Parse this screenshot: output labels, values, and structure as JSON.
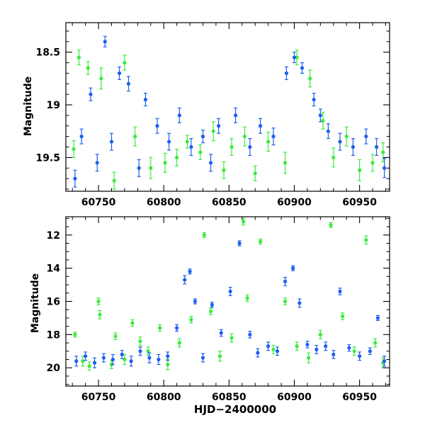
{
  "colors": {
    "series_blue": "#1f5ff0",
    "series_green": "#3dea3d",
    "frame": "#000000"
  },
  "chart_data": [
    {
      "type": "scatter",
      "panel": "top",
      "title": "",
      "xlabel": "",
      "ylabel": "Magnitude",
      "xlim": [
        60725,
        60973
      ],
      "ylim": [
        19.82,
        18.22
      ],
      "y_inverted": true,
      "xticks": [
        60750,
        60800,
        60850,
        60900,
        60950
      ],
      "xtick_labels": [
        "60750",
        "60800",
        "60850",
        "60900",
        "60950"
      ],
      "yticks": [
        18.5,
        19,
        19.5
      ],
      "ytick_labels": [
        "18.5",
        "19",
        "19.5"
      ],
      "error_bars": true,
      "series": [
        {
          "color_key": "series_green",
          "points": [
            [
              60731,
              19.42,
              0.08
            ],
            [
              60735,
              18.55,
              0.07
            ],
            [
              60742,
              18.65,
              0.06
            ],
            [
              60752,
              18.75,
              0.1
            ],
            [
              60762,
              19.72,
              0.08
            ],
            [
              60770,
              18.6,
              0.07
            ],
            [
              60778,
              19.3,
              0.09
            ],
            [
              60790,
              19.6,
              0.1
            ],
            [
              60801,
              19.55,
              0.09
            ],
            [
              60810,
              19.5,
              0.08
            ],
            [
              60818,
              19.35,
              0.06
            ],
            [
              60828,
              19.45,
              0.07
            ],
            [
              60838,
              19.25,
              0.09
            ],
            [
              60846,
              19.62,
              0.08
            ],
            [
              60852,
              19.4,
              0.08
            ],
            [
              60862,
              19.3,
              0.09
            ],
            [
              60870,
              19.65,
              0.07
            ],
            [
              60880,
              19.35,
              0.09
            ],
            [
              60893,
              19.55,
              0.1
            ],
            [
              60902,
              18.55,
              0.07
            ],
            [
              60912,
              18.75,
              0.08
            ],
            [
              60922,
              19.15,
              0.08
            ],
            [
              60930,
              19.5,
              0.09
            ],
            [
              60940,
              19.3,
              0.09
            ],
            [
              60950,
              19.62,
              0.1
            ],
            [
              60960,
              19.55,
              0.08
            ],
            [
              60968,
              19.45,
              0.09
            ]
          ]
        },
        {
          "color_key": "series_blue",
          "points": [
            [
              60732,
              19.7,
              0.08
            ],
            [
              60737,
              19.3,
              0.07
            ],
            [
              60744,
              18.9,
              0.06
            ],
            [
              60749,
              19.55,
              0.08
            ],
            [
              60755,
              18.4,
              0.05
            ],
            [
              60760,
              19.35,
              0.08
            ],
            [
              60766,
              18.7,
              0.06
            ],
            [
              60773,
              18.8,
              0.07
            ],
            [
              60781,
              19.6,
              0.08
            ],
            [
              60786,
              18.95,
              0.06
            ],
            [
              60795,
              19.2,
              0.07
            ],
            [
              60804,
              19.35,
              0.08
            ],
            [
              60812,
              19.1,
              0.07
            ],
            [
              60821,
              19.4,
              0.08
            ],
            [
              60830,
              19.3,
              0.06
            ],
            [
              60836,
              19.55,
              0.08
            ],
            [
              60842,
              19.2,
              0.07
            ],
            [
              60855,
              19.1,
              0.07
            ],
            [
              60866,
              19.4,
              0.08
            ],
            [
              60874,
              19.2,
              0.07
            ],
            [
              60884,
              19.3,
              0.08
            ],
            [
              60894,
              18.7,
              0.06
            ],
            [
              60900,
              18.55,
              0.05
            ],
            [
              60906,
              18.65,
              0.05
            ],
            [
              60915,
              18.95,
              0.06
            ],
            [
              60920,
              19.1,
              0.06
            ],
            [
              60926,
              19.25,
              0.07
            ],
            [
              60935,
              19.35,
              0.08
            ],
            [
              60945,
              19.4,
              0.08
            ],
            [
              60955,
              19.3,
              0.07
            ],
            [
              60963,
              19.4,
              0.08
            ],
            [
              60969,
              19.6,
              0.09
            ]
          ]
        }
      ]
    },
    {
      "type": "scatter",
      "panel": "bottom",
      "title": "",
      "xlabel": "HJD−2400000",
      "ylabel": "Magnitude",
      "xlim": [
        60725,
        60973
      ],
      "ylim": [
        21.1,
        10.9
      ],
      "y_inverted": true,
      "xticks": [
        60750,
        60800,
        60850,
        60900,
        60950
      ],
      "xtick_labels": [
        "60750",
        "60800",
        "60850",
        "60900",
        "60950"
      ],
      "yticks": [
        12,
        14,
        16,
        18,
        20
      ],
      "ytick_labels": [
        "12",
        "14",
        "16",
        "18",
        "20"
      ],
      "error_bars": true,
      "series": [
        {
          "color_key": "series_green",
          "points": [
            [
              60732,
              18.0,
              0.15
            ],
            [
              60738,
              19.6,
              0.3
            ],
            [
              60743,
              19.9,
              0.25
            ],
            [
              60750,
              16.0,
              0.2
            ],
            [
              60751,
              16.8,
              0.25
            ],
            [
              60760,
              19.8,
              0.25
            ],
            [
              60763,
              18.1,
              0.2
            ],
            [
              60770,
              19.5,
              0.3
            ],
            [
              60776,
              17.3,
              0.2
            ],
            [
              60782,
              18.4,
              0.25
            ],
            [
              60788,
              19.0,
              0.25
            ],
            [
              60797,
              17.6,
              0.2
            ],
            [
              60803,
              19.8,
              0.3
            ],
            [
              60812,
              18.5,
              0.25
            ],
            [
              60821,
              17.1,
              0.2
            ],
            [
              60831,
              12.0,
              0.15
            ],
            [
              60836,
              16.6,
              0.2
            ],
            [
              60843,
              19.3,
              0.3
            ],
            [
              60852,
              18.2,
              0.25
            ],
            [
              60861,
              11.2,
              0.2
            ],
            [
              60864,
              15.8,
              0.2
            ],
            [
              60874,
              12.4,
              0.15
            ],
            [
              60884,
              18.9,
              0.25
            ],
            [
              60893,
              16.0,
              0.2
            ],
            [
              60902,
              18.7,
              0.25
            ],
            [
              60911,
              19.4,
              0.3
            ],
            [
              60920,
              18.0,
              0.25
            ],
            [
              60928,
              11.4,
              0.15
            ],
            [
              60937,
              16.9,
              0.2
            ],
            [
              60946,
              19.0,
              0.25
            ],
            [
              60955,
              12.3,
              0.25
            ],
            [
              60962,
              18.5,
              0.25
            ],
            [
              60968,
              19.7,
              0.3
            ]
          ]
        },
        {
          "color_key": "series_blue",
          "points": [
            [
              60733,
              19.6,
              0.3
            ],
            [
              60740,
              19.3,
              0.25
            ],
            [
              60747,
              19.7,
              0.3
            ],
            [
              60754,
              19.4,
              0.25
            ],
            [
              60761,
              19.5,
              0.3
            ],
            [
              60768,
              19.2,
              0.25
            ],
            [
              60775,
              19.6,
              0.3
            ],
            [
              60782,
              19.0,
              0.25
            ],
            [
              60789,
              19.4,
              0.3
            ],
            [
              60796,
              19.5,
              0.3
            ],
            [
              60803,
              19.3,
              0.25
            ],
            [
              60810,
              17.6,
              0.2
            ],
            [
              60816,
              14.7,
              0.25
            ],
            [
              60820,
              14.2,
              0.15
            ],
            [
              60824,
              16.0,
              0.15
            ],
            [
              60830,
              19.4,
              0.25
            ],
            [
              60837,
              16.2,
              0.15
            ],
            [
              60844,
              17.9,
              0.2
            ],
            [
              60851,
              15.4,
              0.25
            ],
            [
              60858,
              12.5,
              0.15
            ],
            [
              60866,
              18.0,
              0.2
            ],
            [
              60872,
              19.1,
              0.25
            ],
            [
              60880,
              18.7,
              0.25
            ],
            [
              60887,
              19.0,
              0.25
            ],
            [
              60893,
              14.8,
              0.25
            ],
            [
              60899,
              14.0,
              0.15
            ],
            [
              60904,
              16.1,
              0.25
            ],
            [
              60910,
              18.6,
              0.2
            ],
            [
              60917,
              18.9,
              0.25
            ],
            [
              60924,
              18.7,
              0.25
            ],
            [
              60930,
              19.2,
              0.25
            ],
            [
              60935,
              15.4,
              0.2
            ],
            [
              60942,
              18.8,
              0.2
            ],
            [
              60950,
              19.3,
              0.25
            ],
            [
              60958,
              19.0,
              0.2
            ],
            [
              60964,
              17.0,
              0.15
            ],
            [
              60969,
              19.6,
              0.3
            ]
          ]
        }
      ]
    }
  ]
}
